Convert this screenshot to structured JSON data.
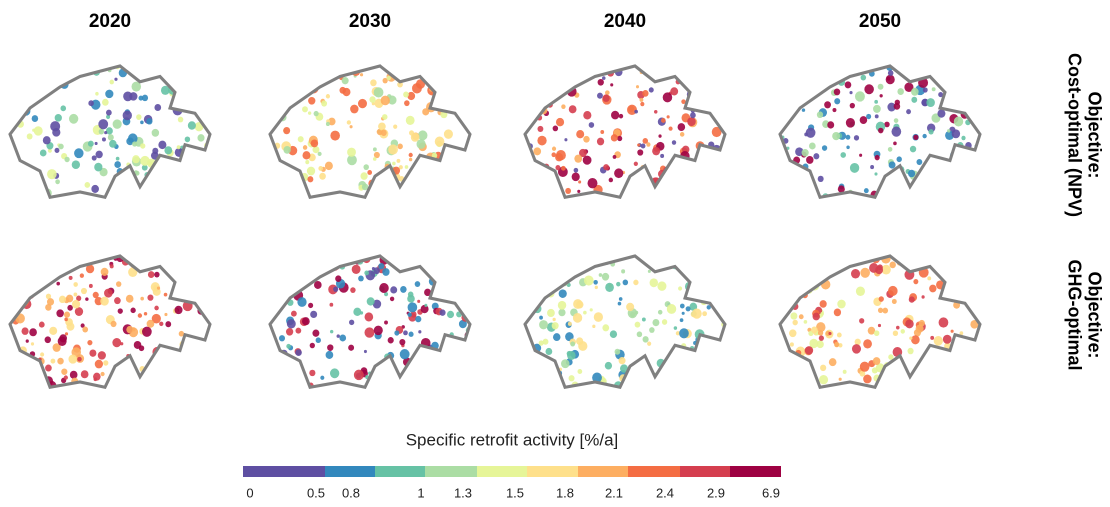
{
  "columns": [
    "2020",
    "2030",
    "2040",
    "2050"
  ],
  "rows": [
    [
      "Objective:",
      "Cost-optimal (NPV)"
    ],
    [
      "Objective:",
      "GHG-optimal"
    ]
  ],
  "legend": {
    "title": "Specific retrofit activity [%/a]",
    "labels": [
      "0",
      "0.5",
      "0.8",
      "1",
      "1.3",
      "1.5",
      "1.8",
      "2.1",
      "2.4",
      "2.9",
      "6.9"
    ],
    "colors": [
      "#5e4fa2",
      "#3288bd",
      "#66c2a5",
      "#abdda4",
      "#e6f598",
      "#fee08b",
      "#fdae61",
      "#f46d43",
      "#d53e4f",
      "#9e0142"
    ]
  }
}
